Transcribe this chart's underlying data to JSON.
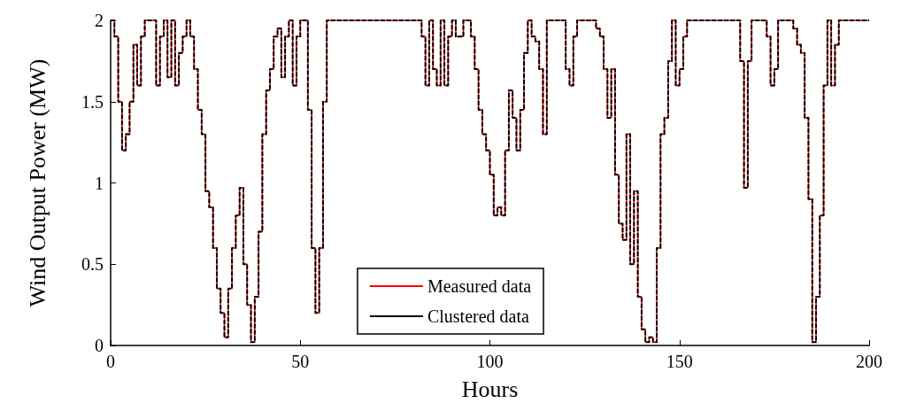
{
  "chart_data": {
    "type": "step",
    "xlabel": "Hours",
    "ylabel": "Wind Output Power (MW)",
    "xlim": [
      0,
      200
    ],
    "xticks": [
      0,
      50,
      100,
      150,
      200
    ],
    "ylim": [
      0,
      2
    ],
    "yticks": [
      0,
      0.5,
      1,
      1.5,
      2
    ],
    "legend": "bottom",
    "marker": "none",
    "x": [
      0,
      1,
      2,
      3,
      4,
      5,
      6,
      7,
      8,
      9,
      10,
      11,
      12,
      13,
      14,
      15,
      16,
      17,
      18,
      19,
      20,
      21,
      22,
      23,
      24,
      25,
      26,
      27,
      28,
      29,
      30,
      31,
      32,
      33,
      34,
      35,
      36,
      37,
      38,
      39,
      40,
      41,
      42,
      43,
      44,
      45,
      46,
      47,
      48,
      49,
      50,
      51,
      52,
      53,
      54,
      55,
      56,
      57,
      58,
      59,
      60,
      61,
      62,
      63,
      64,
      65,
      66,
      67,
      68,
      69,
      70,
      71,
      72,
      73,
      74,
      75,
      76,
      77,
      78,
      79,
      80,
      81,
      82,
      83,
      84,
      85,
      86,
      87,
      88,
      89,
      90,
      91,
      92,
      93,
      94,
      95,
      96,
      97,
      98,
      99,
      100,
      101,
      102,
      103,
      104,
      105,
      106,
      107,
      108,
      109,
      110,
      111,
      112,
      113,
      114,
      115,
      116,
      117,
      118,
      119,
      120,
      121,
      122,
      123,
      124,
      125,
      126,
      127,
      128,
      129,
      130,
      131,
      132,
      133,
      134,
      135,
      136,
      137,
      138,
      139,
      140,
      141,
      142,
      143,
      144,
      145,
      146,
      147,
      148,
      149,
      150,
      151,
      152,
      153,
      154,
      155,
      156,
      157,
      158,
      159,
      160,
      161,
      162,
      163,
      164,
      165,
      166,
      167,
      168,
      169,
      170,
      171,
      172,
      173,
      174,
      175,
      176,
      177,
      178,
      179,
      180,
      181,
      182,
      183,
      184,
      185,
      186,
      187,
      188,
      189,
      190,
      191,
      192,
      193,
      194,
      195,
      196,
      197,
      198,
      199,
      200
    ],
    "series": [
      {
        "name": "Measured data",
        "color": "#ff0000",
        "line_style": "solid",
        "values": [
          2,
          1.9,
          1.5,
          1.2,
          1.3,
          1.5,
          1.85,
          1.6,
          1.9,
          2,
          2,
          2,
          1.6,
          1.9,
          2,
          1.65,
          2,
          1.6,
          1.8,
          1.9,
          2,
          1.9,
          1.7,
          1.45,
          1.3,
          0.95,
          0.85,
          0.6,
          0.35,
          0.2,
          0.05,
          0.35,
          0.6,
          0.8,
          0.97,
          0.5,
          0.25,
          0.02,
          0.3,
          0.7,
          1.3,
          1.57,
          1.7,
          1.9,
          1.95,
          1.65,
          1.9,
          2,
          1.6,
          1.9,
          2,
          2,
          1.45,
          0.6,
          0.2,
          0.6,
          1.5,
          2,
          2,
          2,
          2,
          2,
          2,
          2,
          2,
          2,
          2,
          2,
          2,
          2,
          2,
          2,
          2,
          2,
          2,
          2,
          2,
          2,
          2,
          2,
          2,
          2,
          1.9,
          1.6,
          2,
          1.7,
          1.6,
          2,
          1.6,
          1.9,
          2,
          1.9,
          1.9,
          2,
          2,
          1.9,
          1.7,
          1.45,
          1.3,
          1.2,
          1.05,
          0.8,
          0.85,
          0.8,
          1.2,
          1.57,
          1.4,
          1.2,
          1.45,
          1.8,
          2,
          1.9,
          1.87,
          1.7,
          1.3,
          2,
          2,
          2,
          2,
          2,
          1.7,
          1.6,
          1.9,
          2,
          2,
          2,
          2,
          2,
          1.95,
          1.9,
          1.7,
          1.4,
          1.7,
          1.05,
          0.75,
          0.65,
          1.3,
          0.5,
          0.95,
          0.3,
          0.1,
          0.02,
          0.05,
          0.02,
          0.6,
          1.3,
          1.4,
          1.75,
          2,
          1.6,
          1.7,
          1.9,
          2,
          2,
          2,
          2,
          2,
          2,
          2,
          2,
          2,
          2,
          2,
          2,
          2,
          2,
          1.75,
          0.97,
          1.75,
          2,
          2,
          2,
          2,
          1.9,
          1.6,
          1.7,
          2,
          2,
          2,
          2,
          1.95,
          1.85,
          1.8,
          1.4,
          0.9,
          0.02,
          0.3,
          0.8,
          1.6,
          2,
          1.6,
          1.85,
          2,
          2,
          2,
          2,
          2,
          2,
          2,
          2,
          2
        ]
      },
      {
        "name": "Clustered data",
        "color": "#000000",
        "line_style": "dashed",
        "values": [
          2,
          1.9,
          1.5,
          1.2,
          1.3,
          1.5,
          1.85,
          1.6,
          1.9,
          2,
          2,
          2,
          1.6,
          1.9,
          2,
          1.65,
          2,
          1.6,
          1.8,
          1.9,
          2,
          1.9,
          1.7,
          1.45,
          1.3,
          0.95,
          0.85,
          0.6,
          0.35,
          0.2,
          0.05,
          0.35,
          0.6,
          0.8,
          0.97,
          0.5,
          0.25,
          0.02,
          0.3,
          0.7,
          1.3,
          1.57,
          1.7,
          1.9,
          1.95,
          1.65,
          1.9,
          2,
          1.6,
          1.9,
          2,
          2,
          1.45,
          0.6,
          0.2,
          0.6,
          1.5,
          2,
          2,
          2,
          2,
          2,
          2,
          2,
          2,
          2,
          2,
          2,
          2,
          2,
          2,
          2,
          2,
          2,
          2,
          2,
          2,
          2,
          2,
          2,
          2,
          2,
          1.9,
          1.6,
          2,
          1.7,
          1.6,
          2,
          1.6,
          1.9,
          2,
          1.9,
          1.9,
          2,
          2,
          1.9,
          1.7,
          1.45,
          1.3,
          1.2,
          1.05,
          0.8,
          0.85,
          0.8,
          1.2,
          1.57,
          1.4,
          1.2,
          1.45,
          1.8,
          2,
          1.9,
          1.87,
          1.7,
          1.3,
          2,
          2,
          2,
          2,
          2,
          1.7,
          1.6,
          1.9,
          2,
          2,
          2,
          2,
          2,
          1.95,
          1.9,
          1.7,
          1.4,
          1.7,
          1.05,
          0.75,
          0.65,
          1.3,
          0.5,
          0.95,
          0.3,
          0.1,
          0.02,
          0.05,
          0.02,
          0.6,
          1.3,
          1.4,
          1.75,
          2,
          1.6,
          1.7,
          1.9,
          2,
          2,
          2,
          2,
          2,
          2,
          2,
          2,
          2,
          2,
          2,
          2,
          2,
          2,
          1.75,
          0.97,
          1.75,
          2,
          2,
          2,
          2,
          1.9,
          1.6,
          1.7,
          2,
          2,
          2,
          2,
          1.95,
          1.85,
          1.8,
          1.4,
          0.9,
          0.02,
          0.3,
          0.8,
          1.6,
          2,
          1.6,
          1.85,
          2,
          2,
          2,
          2,
          2,
          2,
          2,
          2,
          2
        ]
      }
    ]
  }
}
